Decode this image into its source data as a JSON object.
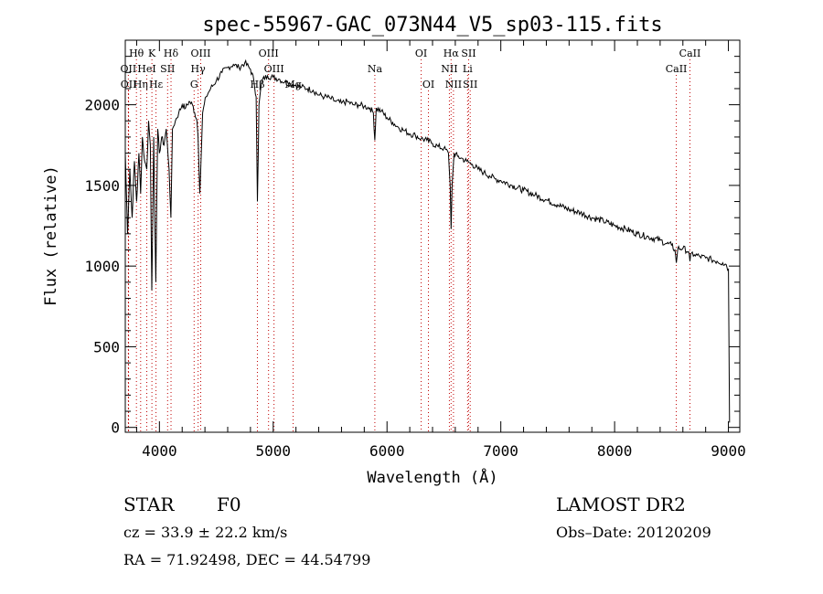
{
  "chart_data": {
    "type": "line",
    "title": "spec-55967-GAC_073N44_V5_sp03-115.fits",
    "xlabel": "Wavelength (Å)",
    "ylabel": "Flux (relative)",
    "xlim": [
      3700,
      9100
    ],
    "ylim": [
      -30,
      2400
    ],
    "xticks": [
      4000,
      5000,
      6000,
      7000,
      8000,
      9000
    ],
    "yticks": [
      0,
      500,
      1000,
      1500,
      2000
    ],
    "grid": false,
    "legend": "none",
    "series": [
      {
        "x": [
          3700,
          3720,
          3740,
          3760,
          3780,
          3800,
          3820,
          3835,
          3850,
          3870,
          3889,
          3905,
          3920,
          3933,
          3950,
          3968,
          3985,
          4000,
          4020,
          4040,
          4060,
          4085,
          4101,
          4115,
          4140,
          4170,
          4200,
          4230,
          4260,
          4290,
          4310,
          4330,
          4340,
          4355,
          4380,
          4410,
          4450,
          4500,
          4550,
          4600,
          4650,
          4700,
          4750,
          4800,
          4830,
          4850,
          4861,
          4875,
          4900,
          4950,
          5000,
          5050,
          5100,
          5150,
          5200,
          5250,
          5300,
          5350,
          5400,
          5450,
          5500,
          5550,
          5600,
          5650,
          5700,
          5750,
          5800,
          5850,
          5880,
          5893,
          5905,
          5950,
          6000,
          6050,
          6100,
          6150,
          6200,
          6250,
          6300,
          6350,
          6400,
          6450,
          6500,
          6540,
          6555,
          6563,
          6572,
          6590,
          6620,
          6650,
          6700,
          6750,
          6800,
          6850,
          6900,
          6950,
          7000,
          7100,
          7200,
          7300,
          7400,
          7500,
          7600,
          7700,
          7800,
          7900,
          8000,
          8100,
          8200,
          8300,
          8400,
          8450,
          8500,
          8530,
          8542,
          8555,
          8600,
          8650,
          8662,
          8675,
          8700,
          8750,
          8800,
          8850,
          8900,
          8950,
          8980,
          9000,
          9010
        ],
        "values": [
          1700,
          1200,
          1600,
          1300,
          1650,
          1400,
          1700,
          1450,
          1800,
          1650,
          1600,
          1900,
          1750,
          850,
          1800,
          900,
          1850,
          1700,
          1800,
          1750,
          1850,
          1600,
          1300,
          1850,
          1900,
          1950,
          2000,
          1980,
          2020,
          2000,
          1950,
          1900,
          1800,
          1450,
          1950,
          2050,
          2100,
          2150,
          2200,
          2230,
          2250,
          2230,
          2260,
          2220,
          2150,
          2050,
          1400,
          2000,
          2150,
          2180,
          2170,
          2160,
          2140,
          2130,
          2120,
          2110,
          2100,
          2090,
          2060,
          2050,
          2040,
          2020,
          2010,
          2020,
          2000,
          2000,
          1990,
          1980,
          1950,
          1780,
          1980,
          1960,
          1920,
          1890,
          1860,
          1840,
          1820,
          1810,
          1790,
          1780,
          1760,
          1740,
          1730,
          1700,
          1500,
          1230,
          1500,
          1700,
          1680,
          1670,
          1650,
          1630,
          1600,
          1580,
          1560,
          1540,
          1530,
          1500,
          1470,
          1440,
          1410,
          1380,
          1350,
          1330,
          1300,
          1280,
          1250,
          1230,
          1200,
          1180,
          1160,
          1140,
          1130,
          1100,
          1020,
          1110,
          1110,
          1090,
          1030,
          1080,
          1070,
          1060,
          1050,
          1040,
          1030,
          1020,
          1010,
          980,
          30
        ]
      }
    ],
    "lines": [
      {
        "name": "Hθ",
        "wave": 3798,
        "row": 0
      },
      {
        "name": "K",
        "wave": 3934,
        "row": 0
      },
      {
        "name": "Hδ",
        "wave": 4102,
        "row": 0
      },
      {
        "name": "OIII",
        "wave": 4363,
        "row": 0
      },
      {
        "name": "OIII",
        "wave": 4959,
        "row": 0
      },
      {
        "name": "OI",
        "wave": 6300,
        "row": 0
      },
      {
        "name": "Hα",
        "wave": 6563,
        "row": 0
      },
      {
        "name": "SII",
        "wave": 6717,
        "row": 0
      },
      {
        "name": "CaII",
        "wave": 8662,
        "row": 0
      },
      {
        "name": "OII",
        "wave": 3727,
        "row": 1
      },
      {
        "name": "HeI",
        "wave": 3889,
        "row": 1
      },
      {
        "name": "SII",
        "wave": 4072,
        "row": 1
      },
      {
        "name": "Hγ",
        "wave": 4340,
        "row": 1
      },
      {
        "name": "OIII",
        "wave": 5007,
        "row": 1
      },
      {
        "name": "Na",
        "wave": 5893,
        "row": 1
      },
      {
        "name": "NII",
        "wave": 6548,
        "row": 1
      },
      {
        "name": "Li",
        "wave": 6708,
        "row": 1
      },
      {
        "name": "CaII",
        "wave": 8542,
        "row": 1
      },
      {
        "name": "OII",
        "wave": 3729,
        "row": 2
      },
      {
        "name": "Hη",
        "wave": 3835,
        "row": 2
      },
      {
        "name": "Hε",
        "wave": 3970,
        "row": 2
      },
      {
        "name": "G",
        "wave": 4305,
        "row": 2
      },
      {
        "name": "Hβ",
        "wave": 4861,
        "row": 2
      },
      {
        "name": "Mg",
        "wave": 5175,
        "row": 2
      },
      {
        "name": "OI",
        "wave": 6364,
        "row": 2
      },
      {
        "name": "NII",
        "wave": 6584,
        "row": 2
      },
      {
        "name": "SII",
        "wave": 6731,
        "row": 2
      }
    ]
  },
  "info": {
    "object_class": "STAR",
    "subclass": "F0",
    "survey": "LAMOST DR2",
    "redshift": "cz = 33.9 ± 22.2 km/s",
    "obs_date": "Obs–Date: 20120209",
    "coords": "RA =  71.92498, DEC =  44.54799"
  }
}
